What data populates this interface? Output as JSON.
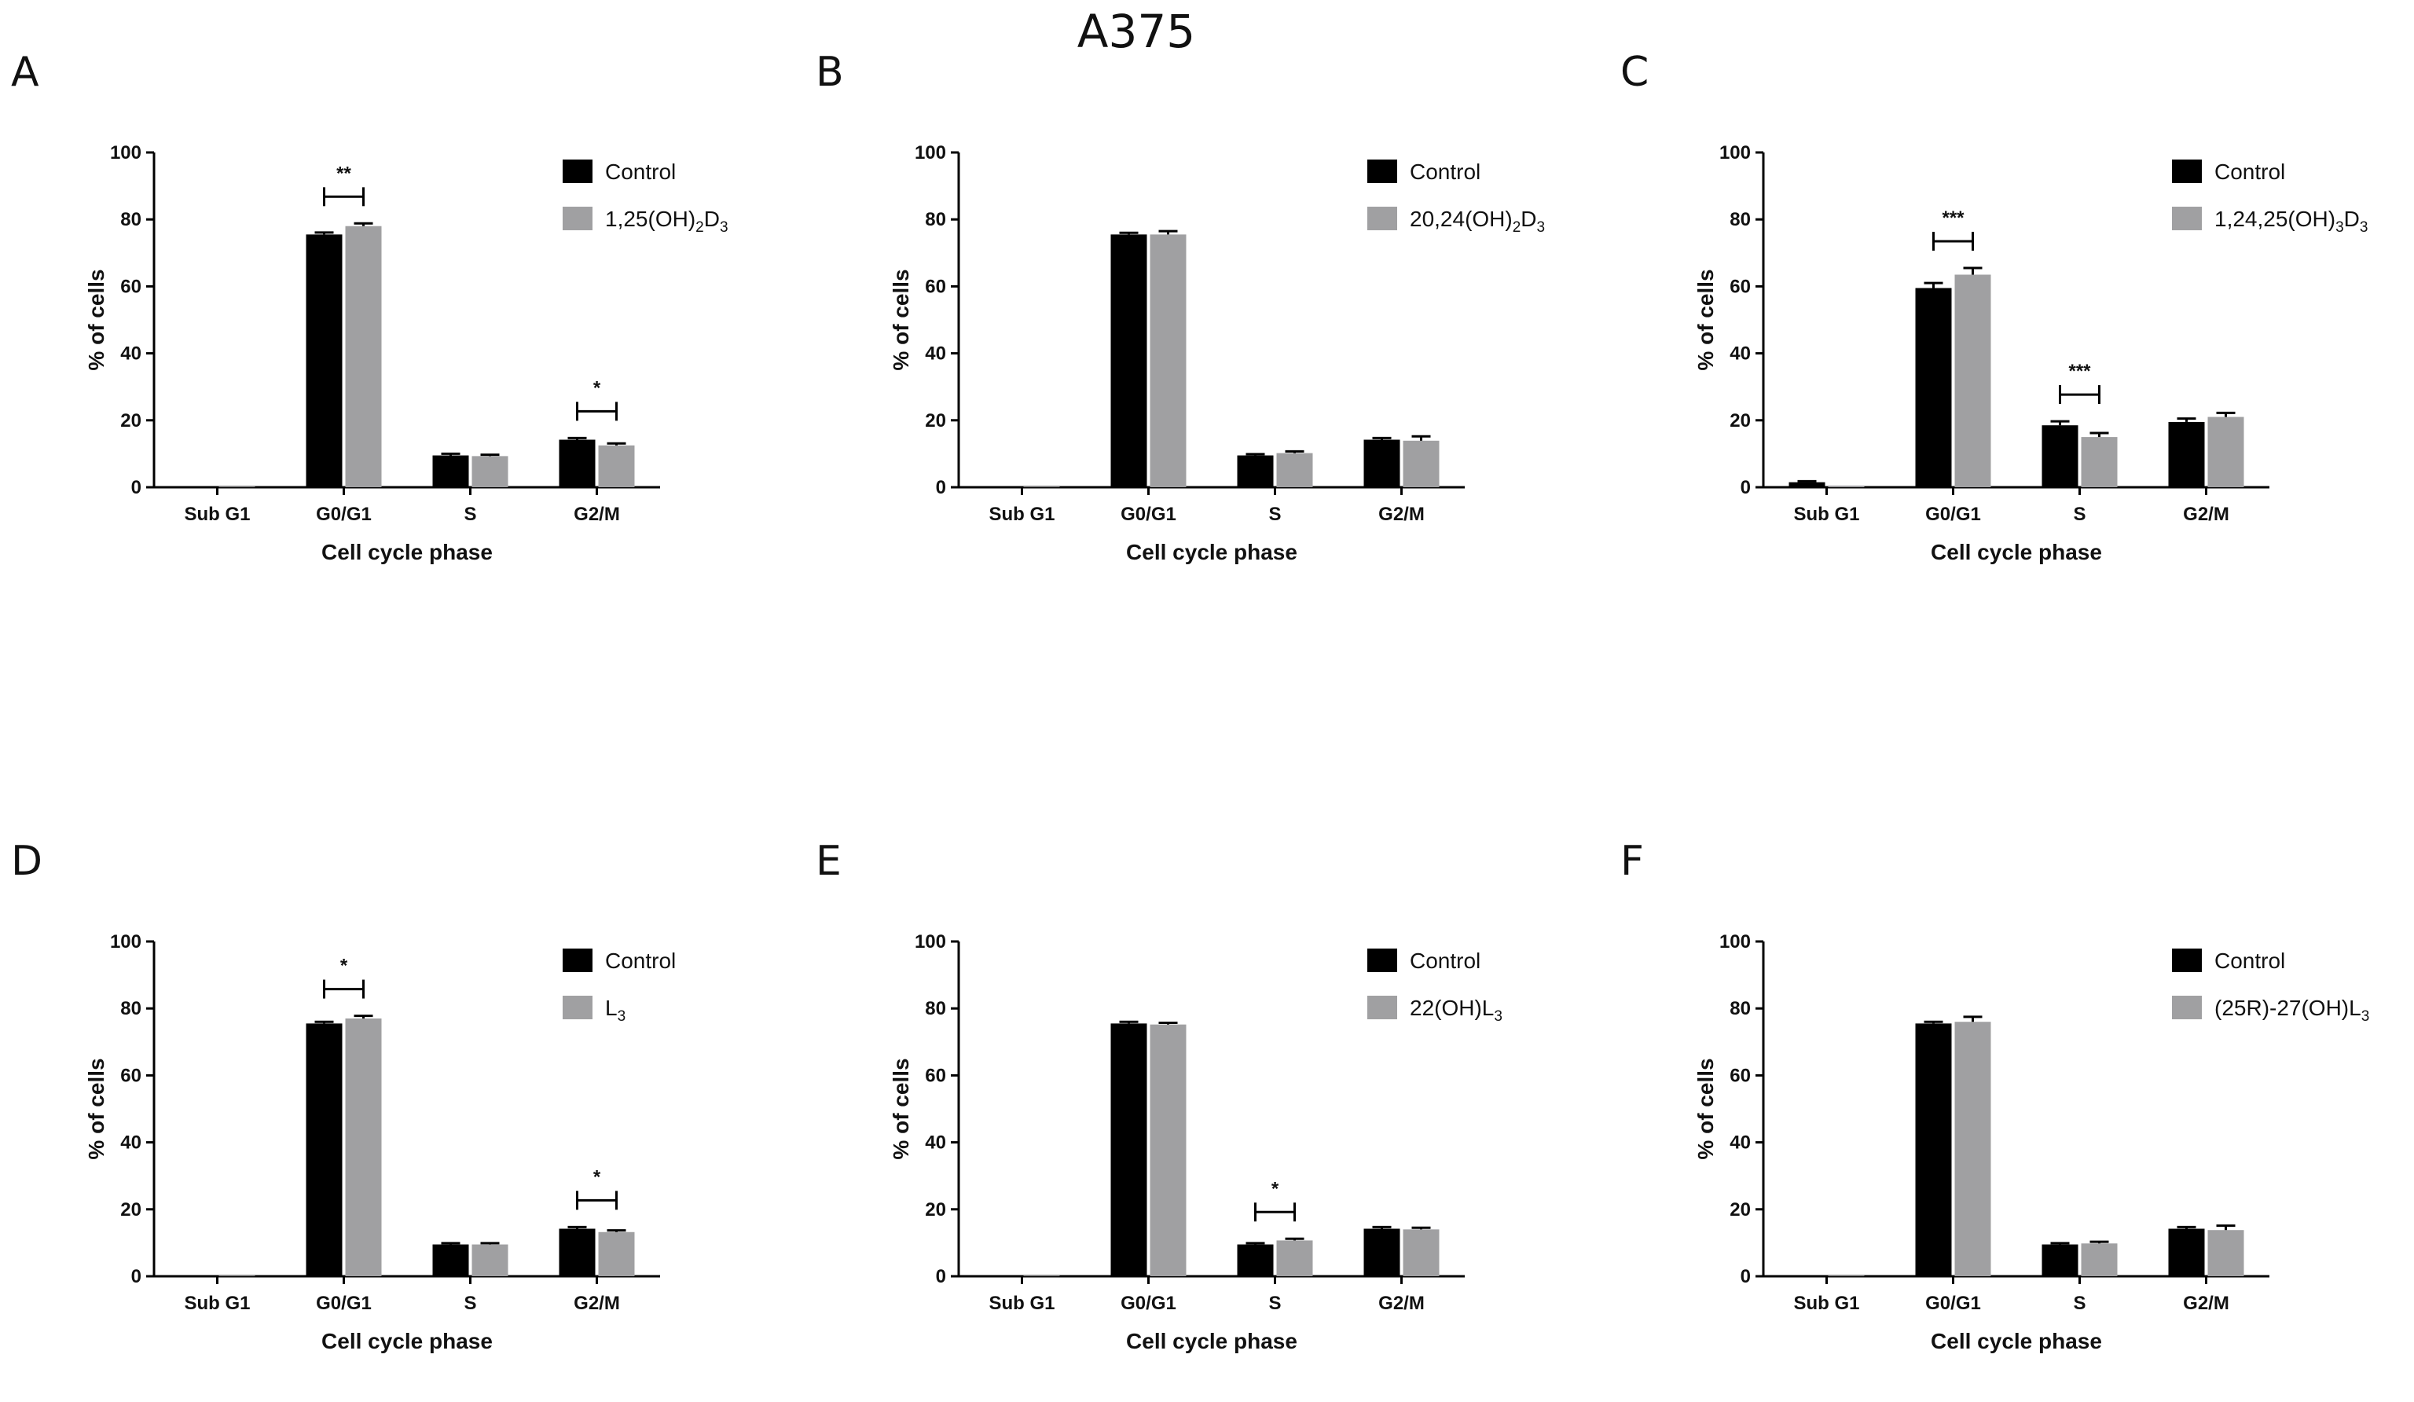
{
  "figure_title": "A375",
  "colors": {
    "control": "#000000",
    "treatment": "#a0a0a2",
    "axis": "#000000"
  },
  "chart_data": [
    {
      "panel": "A",
      "type": "bar",
      "categories": [
        "Sub G1",
        "G0/G1",
        "S",
        "G2/M"
      ],
      "series": [
        {
          "name": "Control",
          "values": [
            0,
            75.5,
            9.5,
            14.2
          ],
          "errors": [
            0,
            0.6,
            0.5,
            0.5
          ]
        },
        {
          "name": "1,25(OH)2D3",
          "legend_parts": [
            [
              "1,25(OH)",
              ""
            ],
            [
              "2",
              "sub"
            ],
            [
              "D",
              ""
            ],
            [
              "3",
              "sub"
            ]
          ],
          "values": [
            0.2,
            78.0,
            9.3,
            12.5
          ],
          "errors": [
            0,
            0.8,
            0.4,
            0.6
          ]
        }
      ],
      "significance": [
        {
          "category": 1,
          "label": "**"
        },
        {
          "category": 3,
          "label": "*"
        }
      ],
      "xlabel": "Cell cycle phase",
      "ylabel": "% of cells",
      "ylim": [
        0,
        100
      ],
      "yticks": [
        0,
        20,
        40,
        60,
        80,
        100
      ],
      "legend_position": "top-right"
    },
    {
      "panel": "B",
      "type": "bar",
      "categories": [
        "Sub G1",
        "G0/G1",
        "S",
        "G2/M"
      ],
      "series": [
        {
          "name": "Control",
          "values": [
            0,
            75.5,
            9.5,
            14.2
          ],
          "errors": [
            0,
            0.5,
            0.4,
            0.5
          ]
        },
        {
          "name": "20,24(OH)2D3",
          "legend_parts": [
            [
              "20,24(OH)",
              ""
            ],
            [
              "2",
              "sub"
            ],
            [
              "D",
              ""
            ],
            [
              "3",
              "sub"
            ]
          ],
          "values": [
            0.2,
            75.5,
            10.2,
            13.9
          ],
          "errors": [
            0,
            1.0,
            0.5,
            1.3
          ]
        }
      ],
      "significance": [],
      "xlabel": "Cell cycle phase",
      "ylabel": "% of cells",
      "ylim": [
        0,
        100
      ],
      "yticks": [
        0,
        20,
        40,
        60,
        80,
        100
      ],
      "legend_position": "top-right"
    },
    {
      "panel": "C",
      "type": "bar",
      "categories": [
        "Sub G1",
        "G0/G1",
        "S",
        "G2/M"
      ],
      "series": [
        {
          "name": "Control",
          "values": [
            1.5,
            59.5,
            18.5,
            19.5
          ],
          "errors": [
            0.3,
            1.5,
            1.2,
            1.0
          ]
        },
        {
          "name": "1,24,25(OH)3D3",
          "legend_parts": [
            [
              "1,24,25(OH)",
              ""
            ],
            [
              "3",
              "sub"
            ],
            [
              "D",
              ""
            ],
            [
              "3",
              "sub"
            ]
          ],
          "values": [
            0.5,
            63.5,
            15.0,
            21.0
          ],
          "errors": [
            0.2,
            2.0,
            1.2,
            1.2
          ]
        }
      ],
      "significance": [
        {
          "category": 1,
          "label": "***"
        },
        {
          "category": 2,
          "label": "***"
        }
      ],
      "xlabel": "Cell cycle phase",
      "ylabel": "% of cells",
      "ylim": [
        0,
        100
      ],
      "yticks": [
        0,
        20,
        40,
        60,
        80,
        100
      ],
      "legend_position": "top-right"
    },
    {
      "panel": "D",
      "type": "bar",
      "categories": [
        "Sub G1",
        "G0/G1",
        "S",
        "G2/M"
      ],
      "series": [
        {
          "name": "Control",
          "values": [
            0,
            75.5,
            9.5,
            14.2
          ],
          "errors": [
            0,
            0.5,
            0.4,
            0.5
          ]
        },
        {
          "name": "L3",
          "legend_parts": [
            [
              "L",
              ""
            ],
            [
              "3",
              "sub"
            ]
          ],
          "values": [
            0.2,
            77.0,
            9.5,
            13.2
          ],
          "errors": [
            0,
            0.8,
            0.4,
            0.5
          ]
        }
      ],
      "significance": [
        {
          "category": 1,
          "label": "*"
        },
        {
          "category": 3,
          "label": "*"
        }
      ],
      "xlabel": "Cell cycle phase",
      "ylabel": "% of cells",
      "ylim": [
        0,
        100
      ],
      "yticks": [
        0,
        20,
        40,
        60,
        80,
        100
      ],
      "legend_position": "top-right"
    },
    {
      "panel": "E",
      "type": "bar",
      "categories": [
        "Sub G1",
        "G0/G1",
        "S",
        "G2/M"
      ],
      "series": [
        {
          "name": "Control",
          "values": [
            0,
            75.5,
            9.5,
            14.2
          ],
          "errors": [
            0,
            0.5,
            0.4,
            0.5
          ]
        },
        {
          "name": "22(OH)L3",
          "legend_parts": [
            [
              "22(OH)L",
              ""
            ],
            [
              "3",
              "sub"
            ]
          ],
          "values": [
            0.2,
            75.2,
            10.7,
            14.0
          ],
          "errors": [
            0,
            0.5,
            0.5,
            0.5
          ]
        }
      ],
      "significance": [
        {
          "category": 2,
          "label": "*"
        }
      ],
      "xlabel": "Cell cycle phase",
      "ylabel": "% of cells",
      "ylim": [
        0,
        100
      ],
      "yticks": [
        0,
        20,
        40,
        60,
        80,
        100
      ],
      "legend_position": "top-right"
    },
    {
      "panel": "F",
      "type": "bar",
      "categories": [
        "Sub G1",
        "G0/G1",
        "S",
        "G2/M"
      ],
      "series": [
        {
          "name": "Control",
          "values": [
            0,
            75.5,
            9.5,
            14.2
          ],
          "errors": [
            0,
            0.5,
            0.4,
            0.5
          ]
        },
        {
          "name": "(25R)-27(OH)L3",
          "legend_parts": [
            [
              "(25R)-27(OH)L",
              ""
            ],
            [
              "3",
              "sub"
            ]
          ],
          "values": [
            0.2,
            76.0,
            9.8,
            13.8
          ],
          "errors": [
            0,
            1.5,
            0.5,
            1.3
          ]
        }
      ],
      "significance": [],
      "xlabel": "Cell cycle phase",
      "ylabel": "% of cells",
      "ylim": [
        0,
        100
      ],
      "yticks": [
        0,
        20,
        40,
        60,
        80,
        100
      ],
      "legend_position": "top-right"
    }
  ]
}
